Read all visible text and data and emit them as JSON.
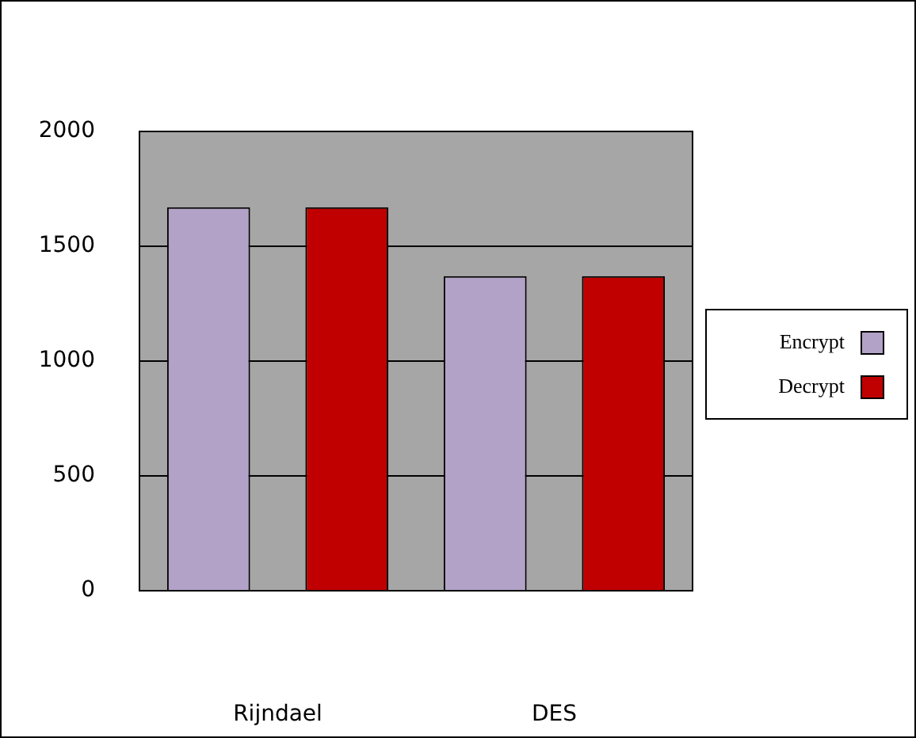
{
  "chart_data": {
    "type": "bar",
    "categories": [
      "Rijndael",
      "DES"
    ],
    "series": [
      {
        "name": "Encrypt",
        "color": "#b3a2c7",
        "values": [
          1670,
          1370
        ]
      },
      {
        "name": "Decrypt",
        "color": "#c00000",
        "values": [
          1670,
          1370
        ]
      }
    ],
    "ylim": [
      0,
      2000
    ],
    "yticks": [
      0,
      500,
      1000,
      1500,
      2000
    ],
    "grid": "y",
    "legend": "right"
  }
}
